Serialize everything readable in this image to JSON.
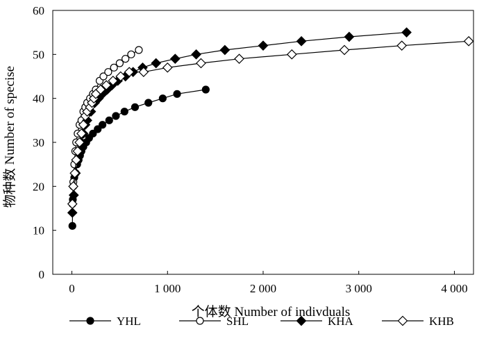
{
  "chart_data": {
    "type": "scatter",
    "xlabel": "个体数 Number of indivduals",
    "ylabel": "物种数 Number of specise",
    "xlim": [
      -200,
      4200
    ],
    "ylim": [
      0,
      60
    ],
    "x_ticks": [
      0,
      1000,
      2000,
      3000,
      4000
    ],
    "x_tick_labels": [
      "0",
      "1 000",
      "2 000",
      "3 000",
      "4 000"
    ],
    "y_ticks": [
      0,
      10,
      20,
      30,
      40,
      50,
      60
    ],
    "y_tick_labels": [
      "0",
      "10",
      "20",
      "30",
      "40",
      "50",
      "60"
    ],
    "grid": false,
    "legend_position": "bottom",
    "series": [
      {
        "name": "YHL",
        "marker": "circle",
        "fill": "#000000",
        "points": [
          [
            5,
            11
          ],
          [
            10,
            17
          ],
          [
            15,
            20
          ],
          [
            25,
            22
          ],
          [
            40,
            23
          ],
          [
            55,
            25
          ],
          [
            70,
            26
          ],
          [
            85,
            27
          ],
          [
            100,
            28
          ],
          [
            120,
            29
          ],
          [
            150,
            30
          ],
          [
            180,
            31
          ],
          [
            220,
            32
          ],
          [
            270,
            33
          ],
          [
            320,
            34
          ],
          [
            390,
            35
          ],
          [
            460,
            36
          ],
          [
            550,
            37
          ],
          [
            660,
            38
          ],
          [
            800,
            39
          ],
          [
            950,
            40
          ],
          [
            1100,
            41
          ],
          [
            1400,
            42
          ]
        ]
      },
      {
        "name": "SHL",
        "marker": "circle",
        "fill": "#ffffff",
        "points": [
          [
            5,
            16
          ],
          [
            15,
            21
          ],
          [
            25,
            25
          ],
          [
            35,
            28
          ],
          [
            45,
            30
          ],
          [
            60,
            32
          ],
          [
            80,
            34
          ],
          [
            100,
            35
          ],
          [
            120,
            37
          ],
          [
            140,
            38
          ],
          [
            160,
            39
          ],
          [
            190,
            40
          ],
          [
            220,
            41
          ],
          [
            250,
            42
          ],
          [
            290,
            44
          ],
          [
            330,
            45
          ],
          [
            380,
            46
          ],
          [
            440,
            47
          ],
          [
            500,
            48
          ],
          [
            560,
            49
          ],
          [
            620,
            50
          ],
          [
            700,
            51
          ]
        ]
      },
      {
        "name": "KHA",
        "marker": "diamond",
        "fill": "#000000",
        "points": [
          [
            5,
            14
          ],
          [
            20,
            18
          ],
          [
            40,
            23
          ],
          [
            60,
            26
          ],
          [
            80,
            28
          ],
          [
            100,
            30
          ],
          [
            120,
            32
          ],
          [
            140,
            34
          ],
          [
            160,
            35
          ],
          [
            200,
            37
          ],
          [
            240,
            39
          ],
          [
            280,
            40
          ],
          [
            320,
            41
          ],
          [
            370,
            42
          ],
          [
            420,
            43
          ],
          [
            480,
            44
          ],
          [
            560,
            45
          ],
          [
            640,
            46
          ],
          [
            740,
            47
          ],
          [
            880,
            48
          ],
          [
            1080,
            49
          ],
          [
            1300,
            50
          ],
          [
            1600,
            51
          ],
          [
            2000,
            52
          ],
          [
            2400,
            53
          ],
          [
            2900,
            54
          ],
          [
            3500,
            55
          ]
        ]
      },
      {
        "name": "KHB",
        "marker": "diamond",
        "fill": "#ffffff",
        "points": [
          [
            5,
            16
          ],
          [
            15,
            20
          ],
          [
            30,
            23
          ],
          [
            45,
            26
          ],
          [
            60,
            28
          ],
          [
            80,
            30
          ],
          [
            100,
            32
          ],
          [
            120,
            34
          ],
          [
            140,
            36
          ],
          [
            160,
            37
          ],
          [
            190,
            38
          ],
          [
            210,
            39
          ],
          [
            230,
            40
          ],
          [
            250,
            41
          ],
          [
            300,
            42
          ],
          [
            360,
            43
          ],
          [
            430,
            44
          ],
          [
            510,
            45
          ],
          [
            600,
            46
          ],
          [
            750,
            46
          ],
          [
            1000,
            47
          ],
          [
            1350,
            48
          ],
          [
            1750,
            49
          ],
          [
            2300,
            50
          ],
          [
            2850,
            51
          ],
          [
            3450,
            52
          ],
          [
            4150,
            53
          ]
        ]
      }
    ]
  }
}
